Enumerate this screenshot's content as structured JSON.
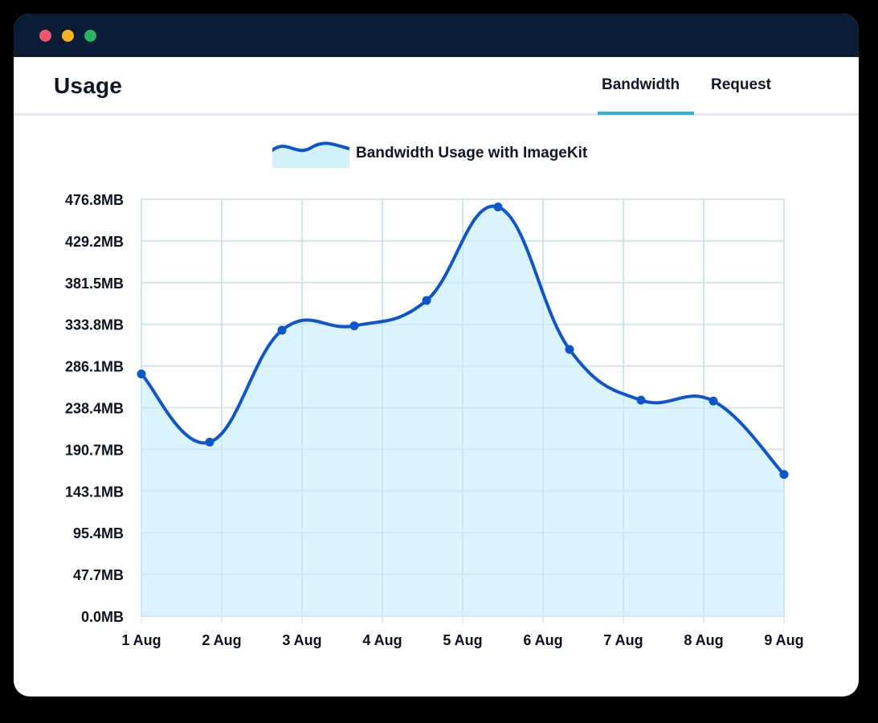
{
  "window": {
    "controls": [
      {
        "name": "close",
        "color": "#f0566b"
      },
      {
        "name": "minimize",
        "color": "#f6b41f"
      },
      {
        "name": "maximize",
        "color": "#27b562"
      }
    ]
  },
  "header": {
    "title": "Usage",
    "tabs": [
      {
        "label": "Bandwidth",
        "active": true
      },
      {
        "label": "Request",
        "active": false
      }
    ]
  },
  "colors": {
    "line": "#0d55cf",
    "fill": "#d4f1fb",
    "grid": "#e4e7ec",
    "tab_accent": "#2ab4e6",
    "titlebar": "#0b1c37"
  },
  "chart_data": {
    "type": "area",
    "title": "",
    "xlabel": "",
    "ylabel": "",
    "legend_position": "top-center",
    "grid": true,
    "x_ticks": [
      "1 Aug",
      "2 Aug",
      "3 Aug",
      "4 Aug",
      "5 Aug",
      "6 Aug",
      "7 Aug",
      "8 Aug",
      "9 Aug"
    ],
    "y_ticks": [
      "0.0MB",
      "47.7MB",
      "95.4MB",
      "143.1MB",
      "190.7MB",
      "238.4MB",
      "286.1MB",
      "333.8MB",
      "381.5MB",
      "429.2MB",
      "476.8MB"
    ],
    "ylim": [
      0,
      476.8
    ],
    "series": [
      {
        "name": "Bandwidth Usage with ImageKit",
        "x": [
          1.0,
          1.85,
          2.75,
          3.65,
          4.55,
          5.44,
          6.33,
          7.22,
          8.12,
          9.0
        ],
        "values": [
          277.0,
          199.0,
          327.0,
          332.0,
          361.0,
          468.0,
          305.0,
          247.0,
          246.0,
          162.0
        ]
      }
    ]
  }
}
